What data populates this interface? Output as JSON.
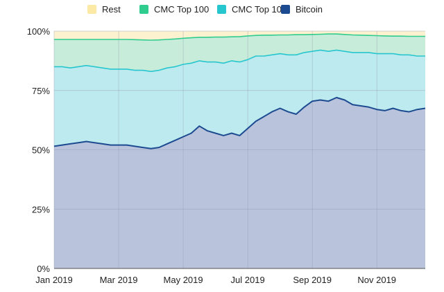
{
  "chart_data": {
    "type": "area",
    "stacked": true,
    "title": "",
    "xlabel": "",
    "ylabel": "",
    "ylim": [
      0,
      100
    ],
    "y_ticks": [
      "0%",
      "25%",
      "50%",
      "75%",
      "100%"
    ],
    "y_tick_values": [
      0,
      25,
      50,
      75,
      100
    ],
    "x_ticks": [
      "Jan 2019",
      "Mar 2019",
      "May 2019",
      "Jul 2019",
      "Sep 2019",
      "Nov 2019"
    ],
    "x_tick_months": [
      0,
      2,
      4,
      6,
      8,
      10
    ],
    "x_range_months": [
      0,
      11.5
    ],
    "grid": true,
    "legend_position": "top",
    "legend": [
      {
        "name": "Rest",
        "color": "#fde9a6"
      },
      {
        "name": "CMC Top 100",
        "color": "#2ecc8e"
      },
      {
        "name": "CMC Top 10",
        "color": "#26c6cf"
      },
      {
        "name": "Bitcoin",
        "color": "#1b4a91"
      }
    ],
    "x_months": [
      0.0,
      0.25,
      0.5,
      0.75,
      1.0,
      1.25,
      1.5,
      1.75,
      2.0,
      2.25,
      2.5,
      2.75,
      3.0,
      3.25,
      3.5,
      3.75,
      4.0,
      4.25,
      4.5,
      4.75,
      5.0,
      5.25,
      5.5,
      5.75,
      6.0,
      6.25,
      6.5,
      6.75,
      7.0,
      7.25,
      7.5,
      7.75,
      8.0,
      8.25,
      8.5,
      8.75,
      9.0,
      9.25,
      9.5,
      9.75,
      10.0,
      10.25,
      10.5,
      10.75,
      11.0,
      11.25,
      11.5
    ],
    "series": [
      {
        "name": "Bitcoin",
        "fill": "#b9c3dc",
        "line": "#1b4a91",
        "values": [
          51.5,
          52.0,
          52.5,
          53.0,
          53.5,
          53.0,
          52.5,
          52.0,
          52.0,
          52.0,
          51.5,
          51.0,
          50.5,
          51.0,
          52.5,
          54.0,
          55.5,
          57.0,
          60.0,
          58.0,
          57.0,
          56.0,
          57.0,
          56.0,
          59.0,
          62.0,
          64.0,
          66.0,
          67.5,
          66.0,
          65.0,
          68.0,
          70.5,
          71.0,
          70.5,
          72.0,
          71.0,
          69.0,
          68.5,
          68.0,
          67.0,
          66.5,
          67.5,
          66.5,
          66.0,
          67.0,
          67.5
        ]
      },
      {
        "name": "CMC Top 10",
        "fill": "#bdeaee",
        "line": "#26c6cf",
        "values": [
          85.0,
          85.0,
          84.5,
          85.0,
          85.5,
          85.0,
          84.5,
          84.0,
          84.0,
          84.0,
          83.5,
          83.5,
          83.0,
          83.5,
          84.5,
          85.0,
          86.0,
          86.5,
          87.5,
          87.0,
          87.0,
          86.5,
          87.5,
          87.0,
          88.0,
          89.5,
          89.5,
          90.0,
          90.5,
          90.0,
          90.0,
          91.0,
          91.5,
          92.0,
          91.5,
          92.0,
          91.5,
          91.0,
          91.0,
          91.0,
          90.5,
          90.5,
          90.5,
          90.0,
          90.0,
          89.5,
          89.5
        ]
      },
      {
        "name": "CMC Top 100",
        "fill": "#c8ecda",
        "line": "#2ecc8e",
        "values": [
          96.5,
          96.5,
          96.5,
          96.5,
          96.5,
          96.5,
          96.5,
          96.5,
          96.5,
          96.5,
          96.4,
          96.3,
          96.2,
          96.3,
          96.5,
          96.7,
          97.0,
          97.2,
          97.4,
          97.4,
          97.5,
          97.5,
          97.6,
          97.7,
          98.0,
          98.2,
          98.3,
          98.3,
          98.4,
          98.4,
          98.5,
          98.5,
          98.6,
          98.7,
          98.8,
          98.8,
          98.6,
          98.4,
          98.3,
          98.2,
          98.1,
          98.0,
          97.9,
          97.9,
          97.8,
          97.8,
          97.8
        ]
      },
      {
        "name": "Rest",
        "fill": "#fdf2cf",
        "line": "#fde9a6",
        "values": [
          100,
          100,
          100,
          100,
          100,
          100,
          100,
          100,
          100,
          100,
          100,
          100,
          100,
          100,
          100,
          100,
          100,
          100,
          100,
          100,
          100,
          100,
          100,
          100,
          100,
          100,
          100,
          100,
          100,
          100,
          100,
          100,
          100,
          100,
          100,
          100,
          100,
          100,
          100,
          100,
          100,
          100,
          100,
          100,
          100,
          100,
          100
        ]
      }
    ]
  }
}
